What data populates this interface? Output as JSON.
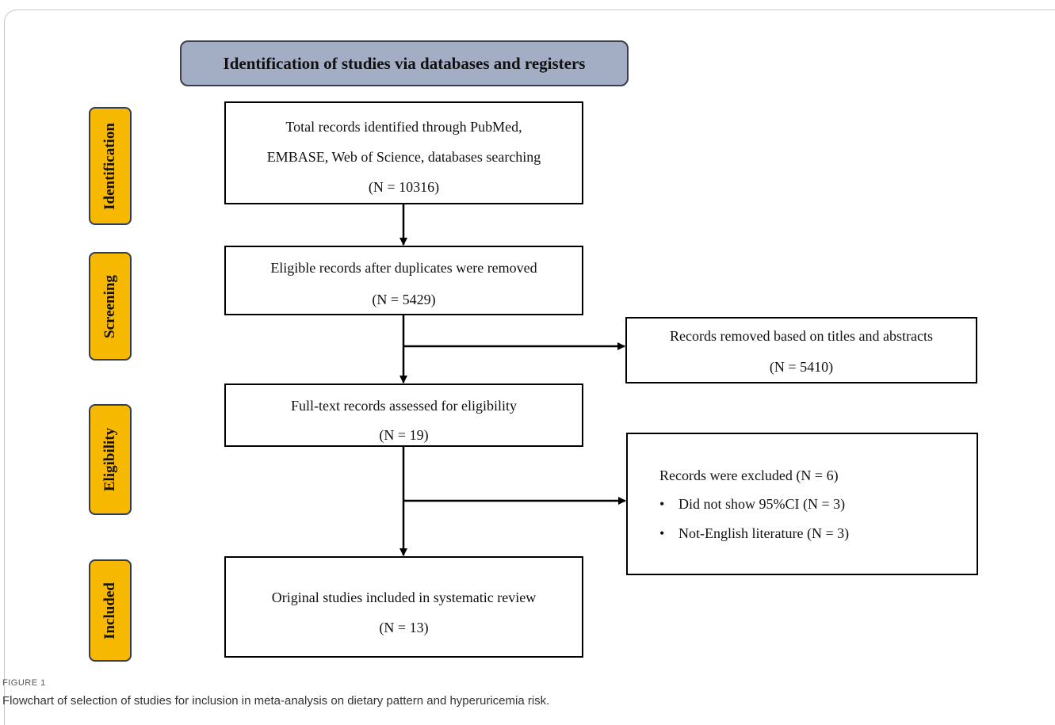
{
  "header": "Identification of studies via databases and registers",
  "stages": {
    "identification": "Identification",
    "screening": "Screening",
    "eligibility": "Eligibility",
    "included": "Included"
  },
  "boxes": {
    "identified": {
      "lines": [
        "Total records identified through PubMed,",
        "EMBASE, Web of Science, databases searching",
        "(N = 10316)"
      ]
    },
    "screened": {
      "lines": [
        "Eligible records after duplicates were removed",
        "(N = 5429)"
      ]
    },
    "removed": {
      "lines": [
        "Records removed based on titles and abstracts",
        "(N = 5410)"
      ]
    },
    "eligible": {
      "lines": [
        "Full-text records assessed for eligibility",
        "(N = 19)"
      ]
    },
    "excluded": {
      "title": "Records were excluded (N = 6)",
      "bullets": [
        "Did not show 95%CI (N = 3)",
        "Not-English literature (N = 3)"
      ]
    },
    "included": {
      "lines": [
        "Original studies included in systematic review",
        "(N = 13)"
      ]
    }
  },
  "caption": {
    "label": "FIGURE 1",
    "text": "Flowchart of selection of studies for inclusion in meta-analysis on dietary pattern and hyperuricemia risk."
  }
}
